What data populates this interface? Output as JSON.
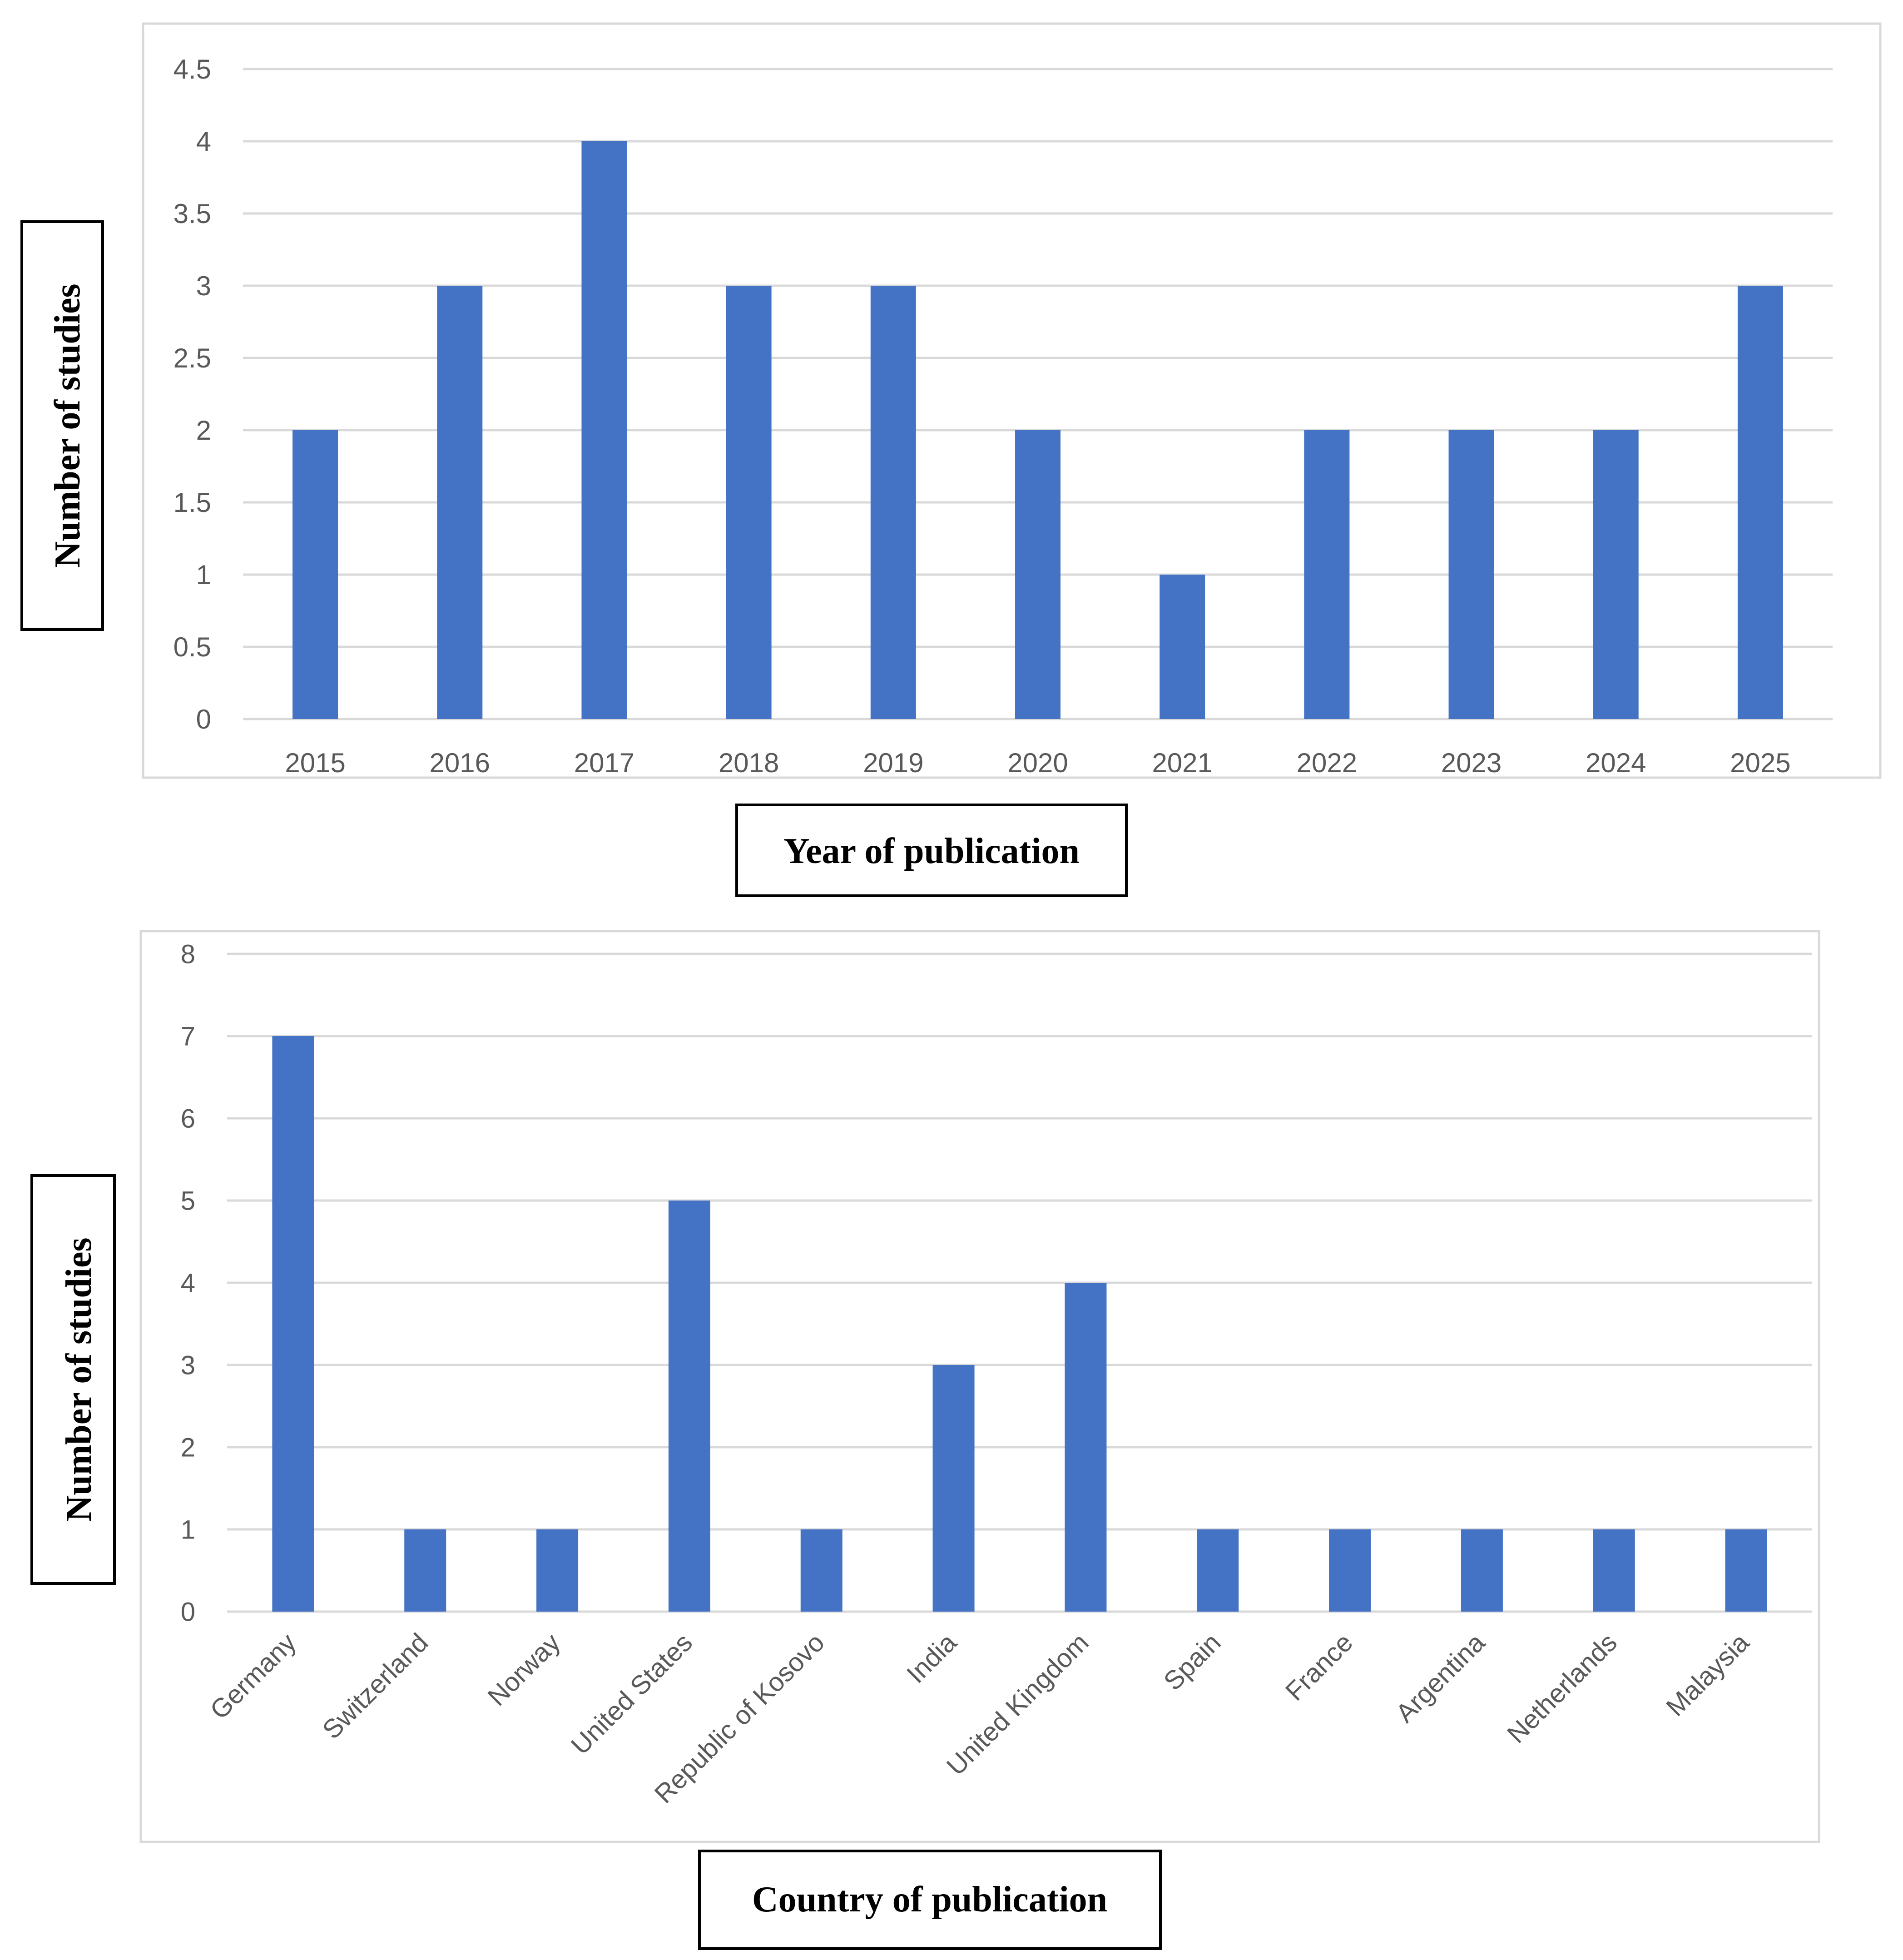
{
  "colors": {
    "bar": "#4472C4",
    "grid": "#D9D9D9",
    "frame": "#D9D9D9",
    "text": "#595959"
  },
  "chart_data": [
    {
      "type": "bar",
      "title": "",
      "xlabel": "Year of publication",
      "ylabel": "Number of studies",
      "categories": [
        "2015",
        "2016",
        "2017",
        "2018",
        "2019",
        "2020",
        "2021",
        "2022",
        "2023",
        "2024",
        "2025"
      ],
      "values": [
        2,
        3,
        4,
        3,
        3,
        2,
        1,
        2,
        2,
        2,
        3
      ],
      "ylim": [
        0,
        4.5
      ],
      "yticks": [
        "0",
        "0.5",
        "1",
        "1.5",
        "2",
        "2.5",
        "3",
        "3.5",
        "4",
        "4.5"
      ],
      "grid": true,
      "legend": "none"
    },
    {
      "type": "bar",
      "title": "",
      "xlabel": "Country of publication",
      "ylabel": "Number of studies",
      "categories": [
        "Germany",
        "Switzerland",
        "Norway",
        "United States",
        "Republic of Kosovo",
        "India",
        "United Kingdom",
        "Spain",
        "France",
        "Argentina",
        "Netherlands",
        "Malaysia"
      ],
      "values": [
        7,
        1,
        1,
        5,
        1,
        3,
        4,
        1,
        1,
        1,
        1,
        1
      ],
      "ylim": [
        0,
        8
      ],
      "yticks": [
        "0",
        "1",
        "2",
        "3",
        "4",
        "5",
        "6",
        "7",
        "8"
      ],
      "grid": true,
      "legend": "none"
    }
  ]
}
